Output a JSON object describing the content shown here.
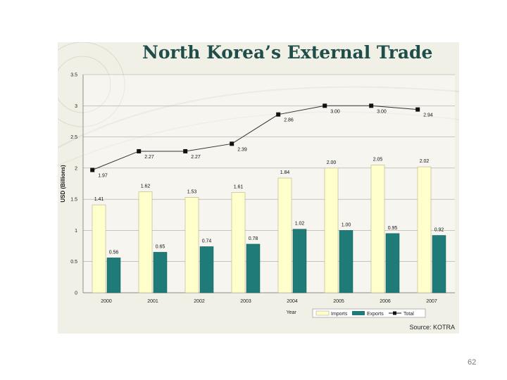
{
  "slide": {
    "title": "North Korea’s External Trade",
    "source": "Source: KOTRA",
    "page_number": "62"
  },
  "chart_data": {
    "type": "bar",
    "title": "",
    "xlabel": "Year",
    "ylabel": "USD (Billions)",
    "ylim": [
      0,
      3.5
    ],
    "yticks": [
      "0",
      "0.5",
      "1",
      "1.5",
      "2",
      "2.5",
      "3",
      "3.5"
    ],
    "categories": [
      "2000",
      "2001",
      "2002",
      "2003",
      "2004",
      "2005",
      "2006",
      "2007"
    ],
    "series": [
      {
        "name": "Imports",
        "kind": "bar",
        "color": "#ffffcc",
        "values": [
          1.41,
          1.62,
          1.53,
          1.61,
          1.84,
          2.0,
          2.05,
          2.02
        ],
        "labels": [
          "1.41",
          "1.62",
          "1.53",
          "1.61",
          "1.84",
          "2.00",
          "2.05",
          "2.02"
        ]
      },
      {
        "name": "Exports",
        "kind": "bar",
        "color": "#1e7b77",
        "values": [
          0.56,
          0.65,
          0.74,
          0.78,
          1.02,
          1.0,
          0.95,
          0.92
        ],
        "labels": [
          "0.56",
          "0.65",
          "0.74",
          "0.78",
          "1.02",
          "1.00",
          "0.95",
          "0.92"
        ]
      },
      {
        "name": "Total",
        "kind": "line",
        "color": "#111111",
        "values": [
          1.97,
          2.27,
          2.27,
          2.39,
          2.86,
          3.0,
          3.0,
          2.94
        ],
        "labels": [
          "1.97",
          "2.27",
          "2.27",
          "2.39",
          "2.86",
          "3.00",
          "3.00",
          "2.94"
        ]
      }
    ],
    "grid": true,
    "legend": "bottom-right"
  }
}
